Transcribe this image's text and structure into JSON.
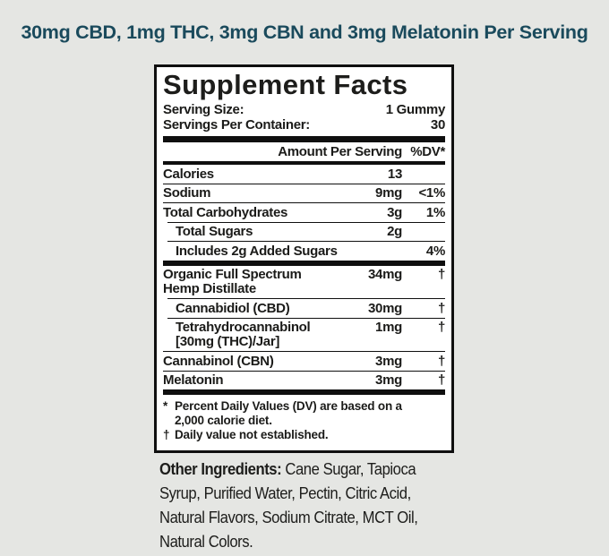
{
  "headline": {
    "text": "30mg CBD, 1mg THC, 3mg CBN and 3mg Melatonin Per Serving",
    "color": "#1a4a5c"
  },
  "facts": {
    "title": "Supplement Facts",
    "serving_size_label": "Serving Size:",
    "serving_size_value": "1 Gummy",
    "servings_per_container_label": "Servings Per Container:",
    "servings_per_container_value": "30",
    "header": {
      "amount": "Amount Per Serving",
      "dv": "%DV*"
    },
    "rows": [
      {
        "name": "Calories",
        "amount": "13",
        "dv": ""
      },
      {
        "name": "Sodium",
        "amount": "9mg",
        "dv": "<1%"
      },
      {
        "name": "Total Carbohydrates",
        "amount": "3g",
        "dv": "1%"
      },
      {
        "name": "Total Sugars",
        "amount": "2g",
        "dv": ""
      },
      {
        "name": "Includes 2g Added Sugars",
        "amount": "",
        "dv": "4%"
      },
      {
        "name": "Organic Full Spectrum\nHemp Distillate",
        "amount": "34mg",
        "dv": "†"
      },
      {
        "name": "Cannabidiol (CBD)",
        "amount": "30mg",
        "dv": "†"
      },
      {
        "name": "Tetrahydrocannabinol\n[30mg (THC)/Jar]",
        "amount": "1mg",
        "dv": "†"
      },
      {
        "name": "Cannabinol (CBN)",
        "amount": "3mg",
        "dv": "†"
      },
      {
        "name": "Melatonin",
        "amount": "3mg",
        "dv": "†"
      }
    ],
    "footnotes": [
      {
        "symbol": "*",
        "text": "Percent Daily Values (DV) are based on a\n2,000 calorie diet."
      },
      {
        "symbol": "†",
        "text": "Daily value not established."
      }
    ]
  },
  "other_ingredients": {
    "label": "Other Ingredients:",
    "text": "  Cane Sugar, Tapioca\nSyrup, Purified Water, Pectin, Citric Acid,\nNatural Flavors, Sodium Citrate, MCT Oil,\nNatural Colors."
  }
}
